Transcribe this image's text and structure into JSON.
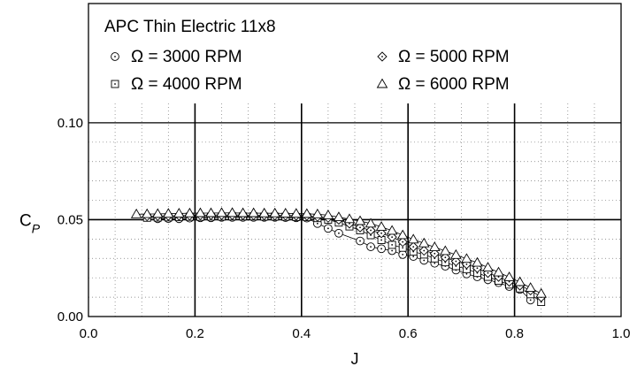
{
  "chart_data": {
    "type": "scatter",
    "title": "APC Thin Electric 11x8",
    "xlabel": "J",
    "ylabel": "C",
    "ylabel_sub": "P",
    "xlim": [
      0.0,
      1.0
    ],
    "ylim": [
      0.0,
      0.11
    ],
    "x_ticks": [
      0.0,
      0.2,
      0.4,
      0.6,
      0.8,
      1.0
    ],
    "x_tick_labels": [
      "0.0",
      "0.2",
      "0.4",
      "0.6",
      "0.8",
      "1.0"
    ],
    "y_ticks": [
      0.0,
      0.05,
      0.1
    ],
    "y_tick_labels": [
      "0.00",
      "0.05",
      "0.10"
    ],
    "grid": true,
    "legend": "top",
    "series": [
      {
        "name": "Ω = 3000 RPM",
        "marker": "circle-dot",
        "x": [
          0.13,
          0.15,
          0.17,
          0.19,
          0.21,
          0.23,
          0.25,
          0.27,
          0.29,
          0.31,
          0.33,
          0.35,
          0.37,
          0.39,
          0.41,
          0.43,
          0.45,
          0.47,
          0.51,
          0.53,
          0.55,
          0.57,
          0.59,
          0.61,
          0.63,
          0.65,
          0.67,
          0.69,
          0.71,
          0.73,
          0.75,
          0.77,
          0.79,
          0.81,
          0.83
        ],
        "y": [
          0.0505,
          0.0506,
          0.0505,
          0.0508,
          0.051,
          0.051,
          0.0512,
          0.0512,
          0.0512,
          0.0512,
          0.0512,
          0.0512,
          0.0511,
          0.051,
          0.0508,
          0.048,
          0.0455,
          0.043,
          0.039,
          0.036,
          0.035,
          0.034,
          0.032,
          0.031,
          0.029,
          0.0275,
          0.026,
          0.024,
          0.022,
          0.0205,
          0.019,
          0.0175,
          0.0155,
          0.014,
          0.0085
        ]
      },
      {
        "name": "Ω = 4000 RPM",
        "marker": "square-dot",
        "x": [
          0.11,
          0.13,
          0.15,
          0.17,
          0.19,
          0.21,
          0.23,
          0.25,
          0.27,
          0.29,
          0.31,
          0.33,
          0.35,
          0.37,
          0.39,
          0.41,
          0.43,
          0.45,
          0.47,
          0.49,
          0.51,
          0.53,
          0.55,
          0.57,
          0.59,
          0.61,
          0.63,
          0.65,
          0.67,
          0.69,
          0.71,
          0.73,
          0.75,
          0.77,
          0.79,
          0.81,
          0.83,
          0.85
        ],
        "y": [
          0.051,
          0.0511,
          0.0512,
          0.0513,
          0.0515,
          0.0515,
          0.0516,
          0.0516,
          0.0517,
          0.0517,
          0.0517,
          0.0516,
          0.0516,
          0.0515,
          0.0514,
          0.0513,
          0.0508,
          0.05,
          0.0485,
          0.0465,
          0.0445,
          0.042,
          0.0395,
          0.037,
          0.0355,
          0.0335,
          0.032,
          0.03,
          0.028,
          0.026,
          0.0245,
          0.0225,
          0.0205,
          0.0185,
          0.0165,
          0.0145,
          0.0115,
          0.0075
        ]
      },
      {
        "name": "Ω = 5000 RPM",
        "marker": "diamond-dot",
        "x": [
          0.11,
          0.13,
          0.15,
          0.17,
          0.19,
          0.21,
          0.23,
          0.25,
          0.27,
          0.29,
          0.31,
          0.33,
          0.35,
          0.37,
          0.39,
          0.41,
          0.43,
          0.45,
          0.47,
          0.49,
          0.51,
          0.53,
          0.55,
          0.57,
          0.59,
          0.61,
          0.63,
          0.65,
          0.67,
          0.69,
          0.71,
          0.73,
          0.75,
          0.77,
          0.79,
          0.81,
          0.83,
          0.85
        ],
        "y": [
          0.0518,
          0.0519,
          0.052,
          0.0521,
          0.0522,
          0.0523,
          0.0524,
          0.0524,
          0.0524,
          0.0524,
          0.0523,
          0.0523,
          0.0522,
          0.0522,
          0.0521,
          0.052,
          0.0515,
          0.051,
          0.05,
          0.048,
          0.046,
          0.0445,
          0.043,
          0.041,
          0.0385,
          0.036,
          0.034,
          0.0325,
          0.0305,
          0.0285,
          0.027,
          0.025,
          0.0225,
          0.0205,
          0.018,
          0.016,
          0.0135,
          0.01
        ]
      },
      {
        "name": "Ω = 6000 RPM",
        "marker": "triangle",
        "x": [
          0.09,
          0.11,
          0.13,
          0.15,
          0.17,
          0.19,
          0.21,
          0.23,
          0.25,
          0.27,
          0.29,
          0.31,
          0.33,
          0.35,
          0.37,
          0.39,
          0.41,
          0.43,
          0.45,
          0.47,
          0.49,
          0.51,
          0.53,
          0.55,
          0.57,
          0.59,
          0.61,
          0.63,
          0.65,
          0.67,
          0.69,
          0.71,
          0.73,
          0.75,
          0.77,
          0.79,
          0.81,
          0.83,
          0.85
        ],
        "y": [
          0.0528,
          0.0529,
          0.053,
          0.0531,
          0.0532,
          0.0533,
          0.0534,
          0.0534,
          0.0535,
          0.0535,
          0.0534,
          0.0534,
          0.0533,
          0.0533,
          0.0532,
          0.0531,
          0.053,
          0.0528,
          0.0523,
          0.0513,
          0.0503,
          0.0493,
          0.048,
          0.0463,
          0.0443,
          0.042,
          0.0398,
          0.0378,
          0.0358,
          0.0338,
          0.0318,
          0.0298,
          0.0278,
          0.0253,
          0.0228,
          0.0203,
          0.0178,
          0.0148,
          0.0118
        ]
      }
    ]
  }
}
